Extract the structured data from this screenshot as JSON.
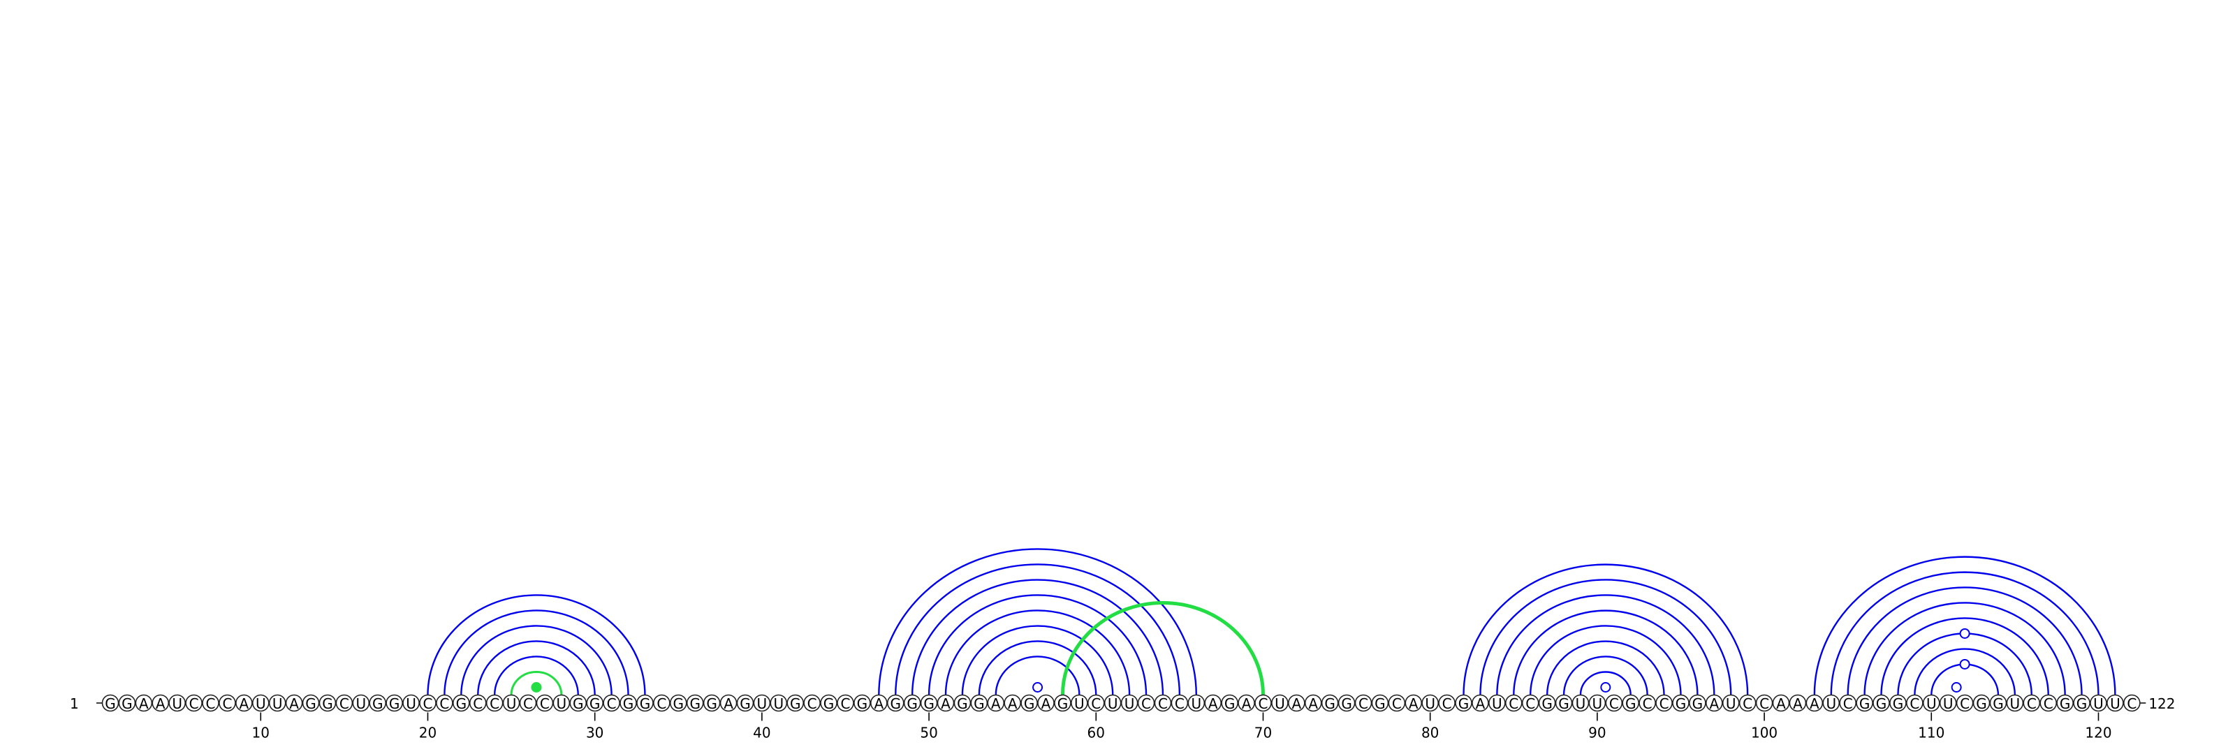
{
  "diagram": {
    "type": "rna-arc-diagram",
    "sequence": "GGAAUCCCAUUAGGCUGGUCCGCCUCCUGGCGGCGGGAGUUGCGCGAGGGAGGAAGAGUCUUCCCUAGACUAAGGCGCAUCGAUCCGGUUCGCCGGAUCCAAAUCGGGCUUCGGUCCGGUUC",
    "length_label_start": "1",
    "length_label_end": "122",
    "tick_positions": [
      10,
      20,
      30,
      40,
      50,
      60,
      70,
      80,
      90,
      100,
      110,
      120
    ],
    "tick_labels": [
      "10",
      "20",
      "30",
      "40",
      "50",
      "60",
      "70",
      "80",
      "90",
      "100",
      "110",
      "120"
    ],
    "colors": {
      "pair": "#0000ee",
      "highlight": "#22dd44",
      "backbone": "#000000"
    },
    "pairs": [
      [
        20,
        33
      ],
      [
        21,
        32
      ],
      [
        22,
        31
      ],
      [
        23,
        30
      ],
      [
        24,
        29
      ],
      [
        25,
        28
      ],
      [
        47,
        66
      ],
      [
        48,
        65
      ],
      [
        49,
        64
      ],
      [
        50,
        63
      ],
      [
        51,
        62
      ],
      [
        52,
        61
      ],
      [
        53,
        60
      ],
      [
        54,
        59
      ],
      [
        82,
        99
      ],
      [
        83,
        98
      ],
      [
        84,
        97
      ],
      [
        85,
        96
      ],
      [
        86,
        95
      ],
      [
        87,
        94
      ],
      [
        88,
        93
      ],
      [
        89,
        92
      ],
      [
        103,
        121
      ],
      [
        104,
        120
      ],
      [
        105,
        119
      ],
      [
        106,
        118
      ],
      [
        107,
        117
      ],
      [
        108,
        116
      ],
      [
        109,
        115
      ],
      [
        110,
        114
      ]
    ],
    "highlight_pairs": [
      [
        25,
        28
      ],
      [
        58,
        70
      ]
    ],
    "noncanonical_pairs": [
      [
        26,
        27
      ],
      [
        56,
        57
      ],
      [
        90,
        91
      ],
      [
        111,
        112
      ],
      [
        108,
        116
      ],
      [
        110,
        114
      ]
    ]
  }
}
